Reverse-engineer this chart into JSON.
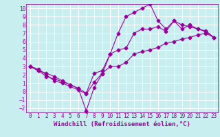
{
  "xlabel": "Windchill (Refroidissement éolien,°C)",
  "background_color": "#c8eef0",
  "grid_color": "#ffffff",
  "line_color": "#990099",
  "spine_color": "#990099",
  "xlim": [
    -0.5,
    23.5
  ],
  "ylim": [
    -2.5,
    10.5
  ],
  "xticks": [
    0,
    1,
    2,
    3,
    4,
    5,
    6,
    7,
    8,
    9,
    10,
    11,
    12,
    13,
    14,
    15,
    16,
    17,
    18,
    19,
    20,
    21,
    22,
    23
  ],
  "yticks": [
    -2,
    -1,
    0,
    1,
    2,
    3,
    4,
    5,
    6,
    7,
    8,
    9,
    10
  ],
  "line1_x": [
    0,
    1,
    2,
    3,
    4,
    5,
    6,
    7,
    8,
    9,
    10,
    11,
    12,
    13,
    14,
    15,
    16,
    17,
    18,
    19,
    20,
    21,
    22,
    23
  ],
  "line1_y": [
    3.0,
    2.7,
    2.0,
    1.3,
    1.0,
    0.6,
    0.2,
    -0.3,
    1.1,
    2.2,
    3.0,
    3.0,
    3.5,
    4.5,
    4.8,
    5.0,
    5.3,
    5.8,
    6.0,
    6.3,
    6.5,
    6.8,
    7.0,
    6.5
  ],
  "line2_x": [
    0,
    1,
    2,
    3,
    4,
    5,
    6,
    7,
    8,
    9,
    10,
    11,
    12,
    13,
    14,
    15,
    16,
    17,
    18,
    19,
    20,
    21,
    22,
    23
  ],
  "line2_y": [
    3.0,
    2.5,
    1.8,
    1.5,
    1.2,
    0.8,
    0.4,
    -2.3,
    0.5,
    2.1,
    4.5,
    7.0,
    9.0,
    9.5,
    10.0,
    10.5,
    8.5,
    7.5,
    8.5,
    7.5,
    8.0,
    7.5,
    7.3,
    6.5
  ],
  "line3_x": [
    0,
    1,
    2,
    3,
    4,
    5,
    6,
    7,
    8,
    9,
    10,
    11,
    12,
    13,
    14,
    15,
    16,
    17,
    18,
    19,
    20,
    21,
    22,
    23
  ],
  "line3_y": [
    3.0,
    2.5,
    2.2,
    1.8,
    1.3,
    0.8,
    0.4,
    -0.2,
    2.2,
    2.5,
    4.5,
    5.0,
    5.2,
    7.0,
    7.5,
    7.5,
    7.8,
    7.2,
    8.5,
    8.0,
    7.8,
    7.5,
    7.2,
    6.5
  ],
  "tick_fontsize": 5.5,
  "xlabel_fontsize": 6.5,
  "marker_size": 2.5,
  "line_width": 0.8
}
